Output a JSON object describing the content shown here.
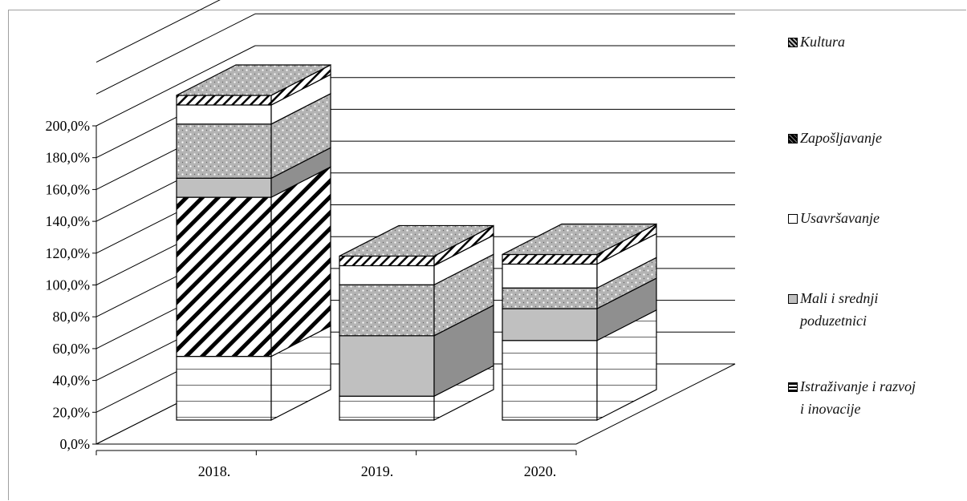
{
  "chart_data": {
    "type": "bar",
    "stacked": true,
    "three_d": true,
    "categories": [
      "2018.",
      "2019.",
      "2020."
    ],
    "y_ticks": [
      "0,0%",
      "20,0%",
      "40,0%",
      "60,0%",
      "80,0%",
      "100,0%",
      "120,0%",
      "140,0%",
      "160,0%",
      "180,0%",
      "200,0%"
    ],
    "ylim": [
      0,
      200
    ],
    "grid": true,
    "legend_position": "right",
    "series": [
      {
        "name": "Istraživanje i razvoj i inovacije",
        "values": [
          40,
          15,
          50
        ],
        "pattern": "horizontal-lines",
        "color": "#ffffff"
      },
      {
        "name": "Mali i srednji poduzetnici",
        "values": [
          100,
          0,
          0
        ],
        "pattern": "diagonal-stripes",
        "color": "#ffffff"
      },
      {
        "name": "Mali i srednji poduzetnici",
        "values": [
          12,
          38,
          20
        ],
        "pattern": "solid",
        "color": "#c0c0c0"
      },
      {
        "name": "Zapošljavanje",
        "values": [
          34,
          32,
          13
        ],
        "pattern": "dotted",
        "color": "#a8a8a8"
      },
      {
        "name": "Usavršavanje",
        "values": [
          12,
          12,
          15
        ],
        "pattern": "solid",
        "color": "#ffffff"
      },
      {
        "name": "Kultura",
        "values": [
          0,
          0,
          0
        ],
        "pattern": "dotted",
        "color": "#b0b0b0"
      }
    ]
  },
  "legend": [
    {
      "label": "Kultura",
      "swatch": "dotted"
    },
    {
      "label": "Zapošljavanje",
      "swatch": "dark-dotted"
    },
    {
      "label": "Usavršavanje",
      "swatch": "white"
    },
    {
      "label": "Mali i srednji poduzetnici",
      "swatch": "gray"
    },
    {
      "label": "Istraživanje i razvoj i inovacije",
      "swatch": "lined"
    }
  ]
}
